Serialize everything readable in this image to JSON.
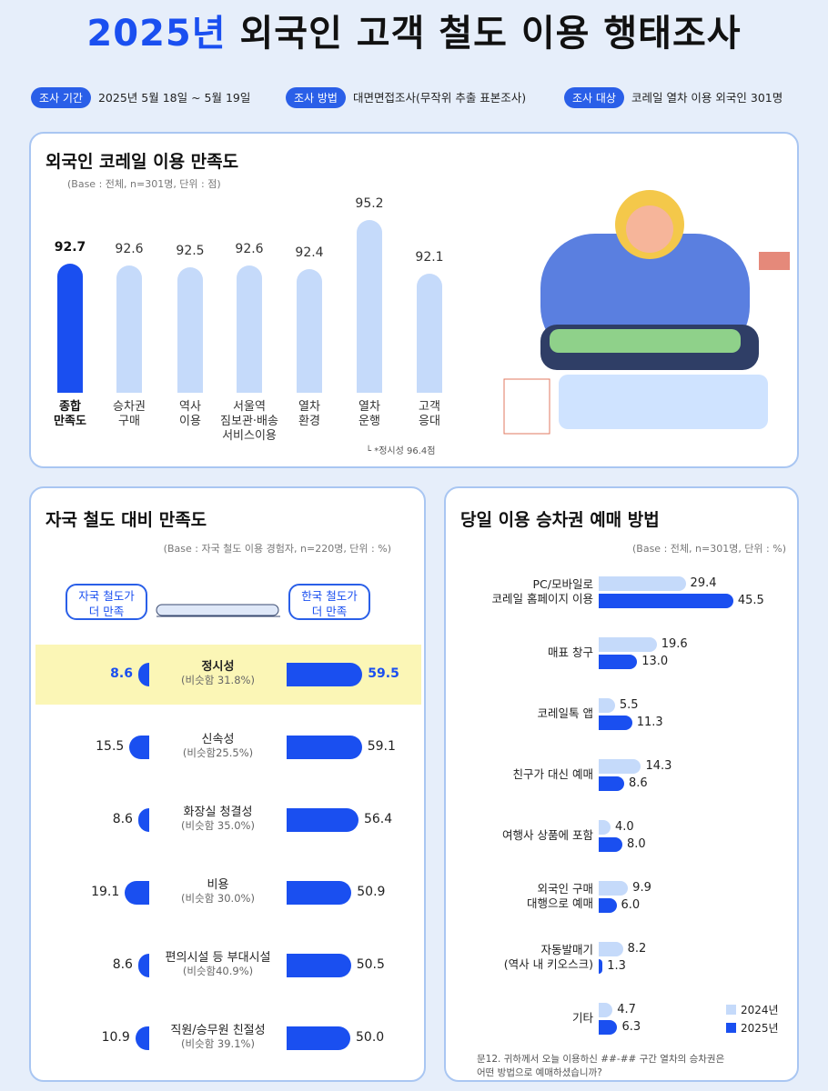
{
  "header": {
    "title": [
      "2025년",
      "외국인 고객 철도 이용 행태조사"
    ],
    "info": [
      {
        "label": "조사 기간",
        "value": "2025년 5월 18일 ~ 5월 19일"
      },
      {
        "label": "조사 방법",
        "value": "대면면접조사(무작위 추출 표본조사)"
      },
      {
        "label": "조사 대상",
        "value": "코레일 열차 이용 외국인 301명"
      }
    ]
  },
  "chart_data": [
    {
      "type": "bar",
      "title": "외국인 코레일 이용 만족도",
      "subtitle": "(Base : 전체, n=301명, 단위 : 점)",
      "categories": [
        "종합\n만족도",
        "승차권\n구매",
        "역사\n이용",
        "서울역\n짐보관·배송\n서비스이용",
        "열차\n환경",
        "열차\n운행",
        "고객\n응대"
      ],
      "values": [
        92.7,
        92.6,
        92.5,
        92.6,
        92.4,
        95.2,
        92.1
      ],
      "colors": [
        "#1a4ff0",
        "#c5dafa",
        "#c5dafa",
        "#c5dafa",
        "#c5dafa",
        "#c5dafa",
        "#c5dafa"
      ],
      "annotation": "└ *정시성 96.4점"
    },
    {
      "type": "diverging_bar",
      "title": "자국 철도 대비 만족도",
      "subtitle": "(Base : 자국 철도 이용 경험자, n=220명, 단위 : %)",
      "categories": [
        "정시성",
        "신속성",
        "화장실 청결성",
        "비용",
        "편의시설 등 부대시설",
        "직원/승무원 친절성"
      ],
      "notes": [
        "(비슷함 31.8%)",
        "(비슷함25.5%)",
        "(비슷함 35.0%)",
        "(비슷함 30.0%)",
        "(비슷함40.9%)",
        "(비슷함 39.1%)"
      ],
      "series": [
        {
          "name": "자국 철도가\n더 만족",
          "color": "#1a4ff0",
          "values": [
            8.6,
            15.5,
            8.6,
            19.1,
            8.6,
            10.9
          ]
        },
        {
          "name": "한국 철도가\n더 만족",
          "color": "#1a4ff0",
          "values": [
            59.5,
            59.1,
            56.4,
            50.9,
            50.5,
            50.0
          ],
          "value_labels": [
            "59.5",
            "59.1",
            "56.4",
            "50.9",
            "50.5",
            "50.0"
          ]
        }
      ]
    },
    {
      "type": "hbar",
      "title": "당일 이용 승차권 예매 방법",
      "subtitle": "(Base : 전체, n=301명, 단위 : %)",
      "categories": [
        "PC/모바일로\n코레일 홈페이지 이용",
        "매표 창구",
        "코레일톡 앱",
        "친구가 대신 예매",
        "여행사 상품에 포함",
        "외국인 구매\n대행으로 예매",
        "자동발매기\n(역사 내 키오스크)",
        "기타"
      ],
      "series": [
        {
          "name": "2024년",
          "color": "#c5dafa",
          "values": [
            29.4,
            19.6,
            5.5,
            14.3,
            4.0,
            9.9,
            8.2,
            4.7
          ],
          "value_labels": [
            "29.4",
            "19.6",
            "5.5",
            "14.3",
            "4.0",
            "9.9",
            "8.2",
            "4.7"
          ]
        },
        {
          "name": "2025년",
          "color": "#1a4ff0",
          "values": [
            45.5,
            13.0,
            11.3,
            8.6,
            8.0,
            6.0,
            1.3,
            6.3
          ],
          "value_labels": [
            "45.5",
            "13.0",
            "11.3",
            "8.6",
            "8.0",
            "6.0",
            "1.3",
            "6.3"
          ]
        }
      ],
      "footnote": "문12. 귀하께서 오늘 이용하신 ##-## 구간 열차의 승차권은\n어떤 방법으로 예매하셨습니까?"
    }
  ]
}
